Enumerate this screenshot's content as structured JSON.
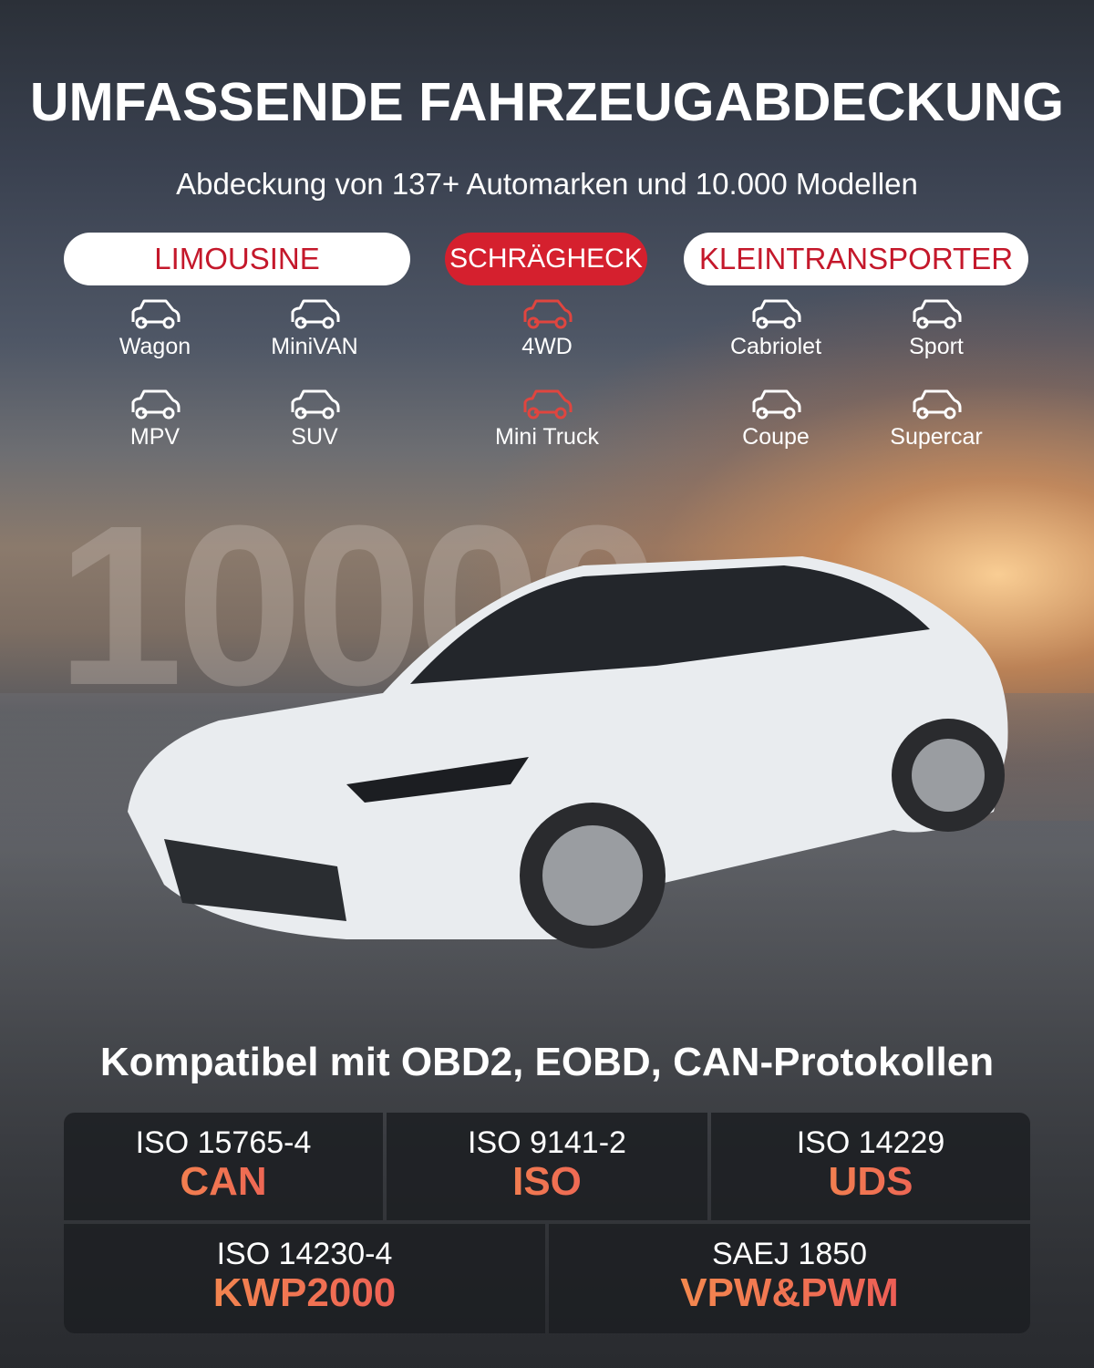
{
  "title": "UMFASSENDE FAHRZEUGABDECKUNG",
  "subtitle": "Abdeckung von 137+ Automarken und 10.000 Modellen",
  "categories": [
    {
      "label": "LIMOUSINE",
      "style": "white"
    },
    {
      "label": "SCHRÄGHECK",
      "style": "red"
    },
    {
      "label": "KLEINTRANSPORTER",
      "style": "white"
    }
  ],
  "vehicles": [
    {
      "label": "Wagon",
      "icon": "wagon-icon"
    },
    {
      "label": "MiniVAN",
      "icon": "minivan-icon"
    },
    {
      "label": "4WD",
      "icon": "4wd-icon",
      "color": "#e0453f"
    },
    {
      "label": "Cabriolet",
      "icon": "cabriolet-icon"
    },
    {
      "label": "Sport",
      "icon": "sport-car-icon"
    },
    {
      "label": "MPV",
      "icon": "mpv-icon"
    },
    {
      "label": "SUV",
      "icon": "suv-icon"
    },
    {
      "label": "Mini Truck",
      "icon": "mini-truck-icon",
      "color": "#e0453f"
    },
    {
      "label": "Coupe",
      "icon": "coupe-icon"
    },
    {
      "label": "Supercar",
      "icon": "supercar-icon"
    }
  ],
  "watermark": "10000",
  "protocols_heading": "Kompatibel mit OBD2, EOBD, CAN-Protokollen",
  "protocols": [
    {
      "standard": "ISO 15765-4",
      "name": "CAN"
    },
    {
      "standard": "ISO 9141-2",
      "name": "ISO"
    },
    {
      "standard": "ISO 14229",
      "name": "UDS"
    },
    {
      "standard": "ISO 14230-4",
      "name": "KWP2000"
    },
    {
      "standard": "SAEJ 1850",
      "name": "VPW&PWM"
    }
  ],
  "colors": {
    "accent_red": "#d5202e",
    "gradient_orange": "#f7a24a",
    "gradient_pink": "#e9445a"
  }
}
